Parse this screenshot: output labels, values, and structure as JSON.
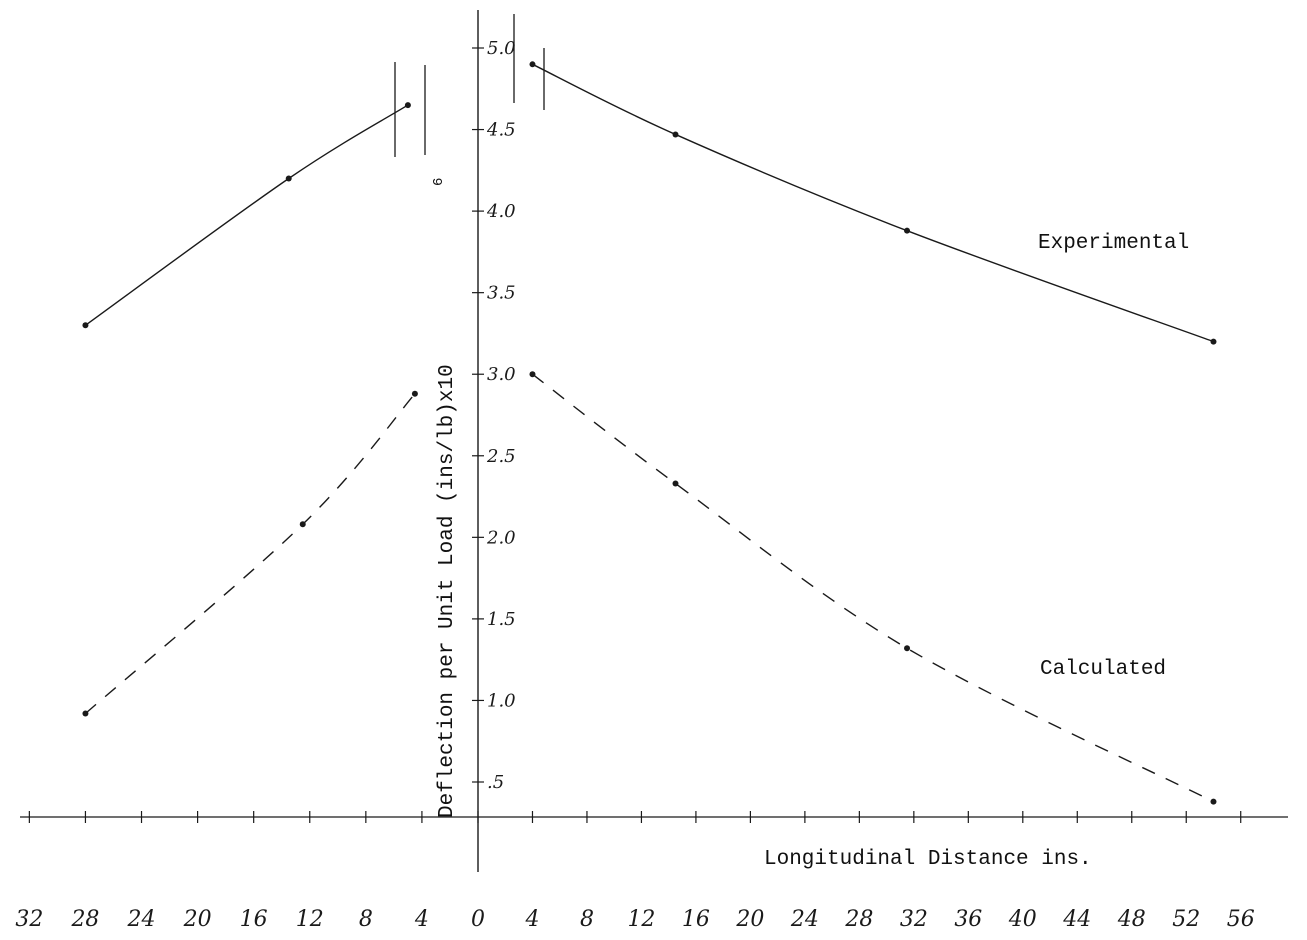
{
  "chart_data": {
    "type": "line",
    "title": "",
    "xlabel": "Longitudinal Distance ins.",
    "ylabel": "Deflection per Unit Load (ins/lb)x10",
    "ylabel_exponent": "6",
    "x_tick_labels": [
      "32",
      "28",
      "24",
      "20",
      "16",
      "12",
      "8",
      "4",
      "0",
      "4",
      "8",
      "12",
      "16",
      "20",
      "24",
      "28",
      "32",
      "36",
      "40",
      "44",
      "48",
      "52",
      "56"
    ],
    "y_tick_labels": [
      ".5",
      "1.0",
      "1.5",
      "2.0",
      "2.5",
      "3.0",
      "3.5",
      "4.0",
      "4.5",
      "5.0"
    ],
    "ylim": [
      0.3,
      5.2
    ],
    "x_left_range": [
      32,
      0
    ],
    "x_right_range": [
      0,
      56
    ],
    "grid": false,
    "colors": {
      "ink": "#1a1a1a",
      "paper": "#ffffff"
    },
    "series": [
      {
        "name": "Experimental",
        "style": "solid",
        "segments": [
          {
            "side": "left",
            "x": [
              28,
              13.5,
              5
            ],
            "y": [
              3.3,
              4.2,
              4.65
            ]
          },
          {
            "side": "right",
            "x": [
              4,
              14.5,
              31.5,
              54
            ],
            "y": [
              4.9,
              4.47,
              3.88,
              3.2
            ]
          }
        ]
      },
      {
        "name": "Calculated",
        "style": "dashed",
        "segments": [
          {
            "side": "left",
            "x": [
              28,
              12.5,
              4.5
            ],
            "y": [
              0.92,
              2.08,
              2.88
            ]
          },
          {
            "side": "right",
            "x": [
              4,
              14.5,
              31.5,
              54
            ],
            "y": [
              3.0,
              2.33,
              1.32,
              0.38
            ]
          }
        ]
      }
    ]
  }
}
